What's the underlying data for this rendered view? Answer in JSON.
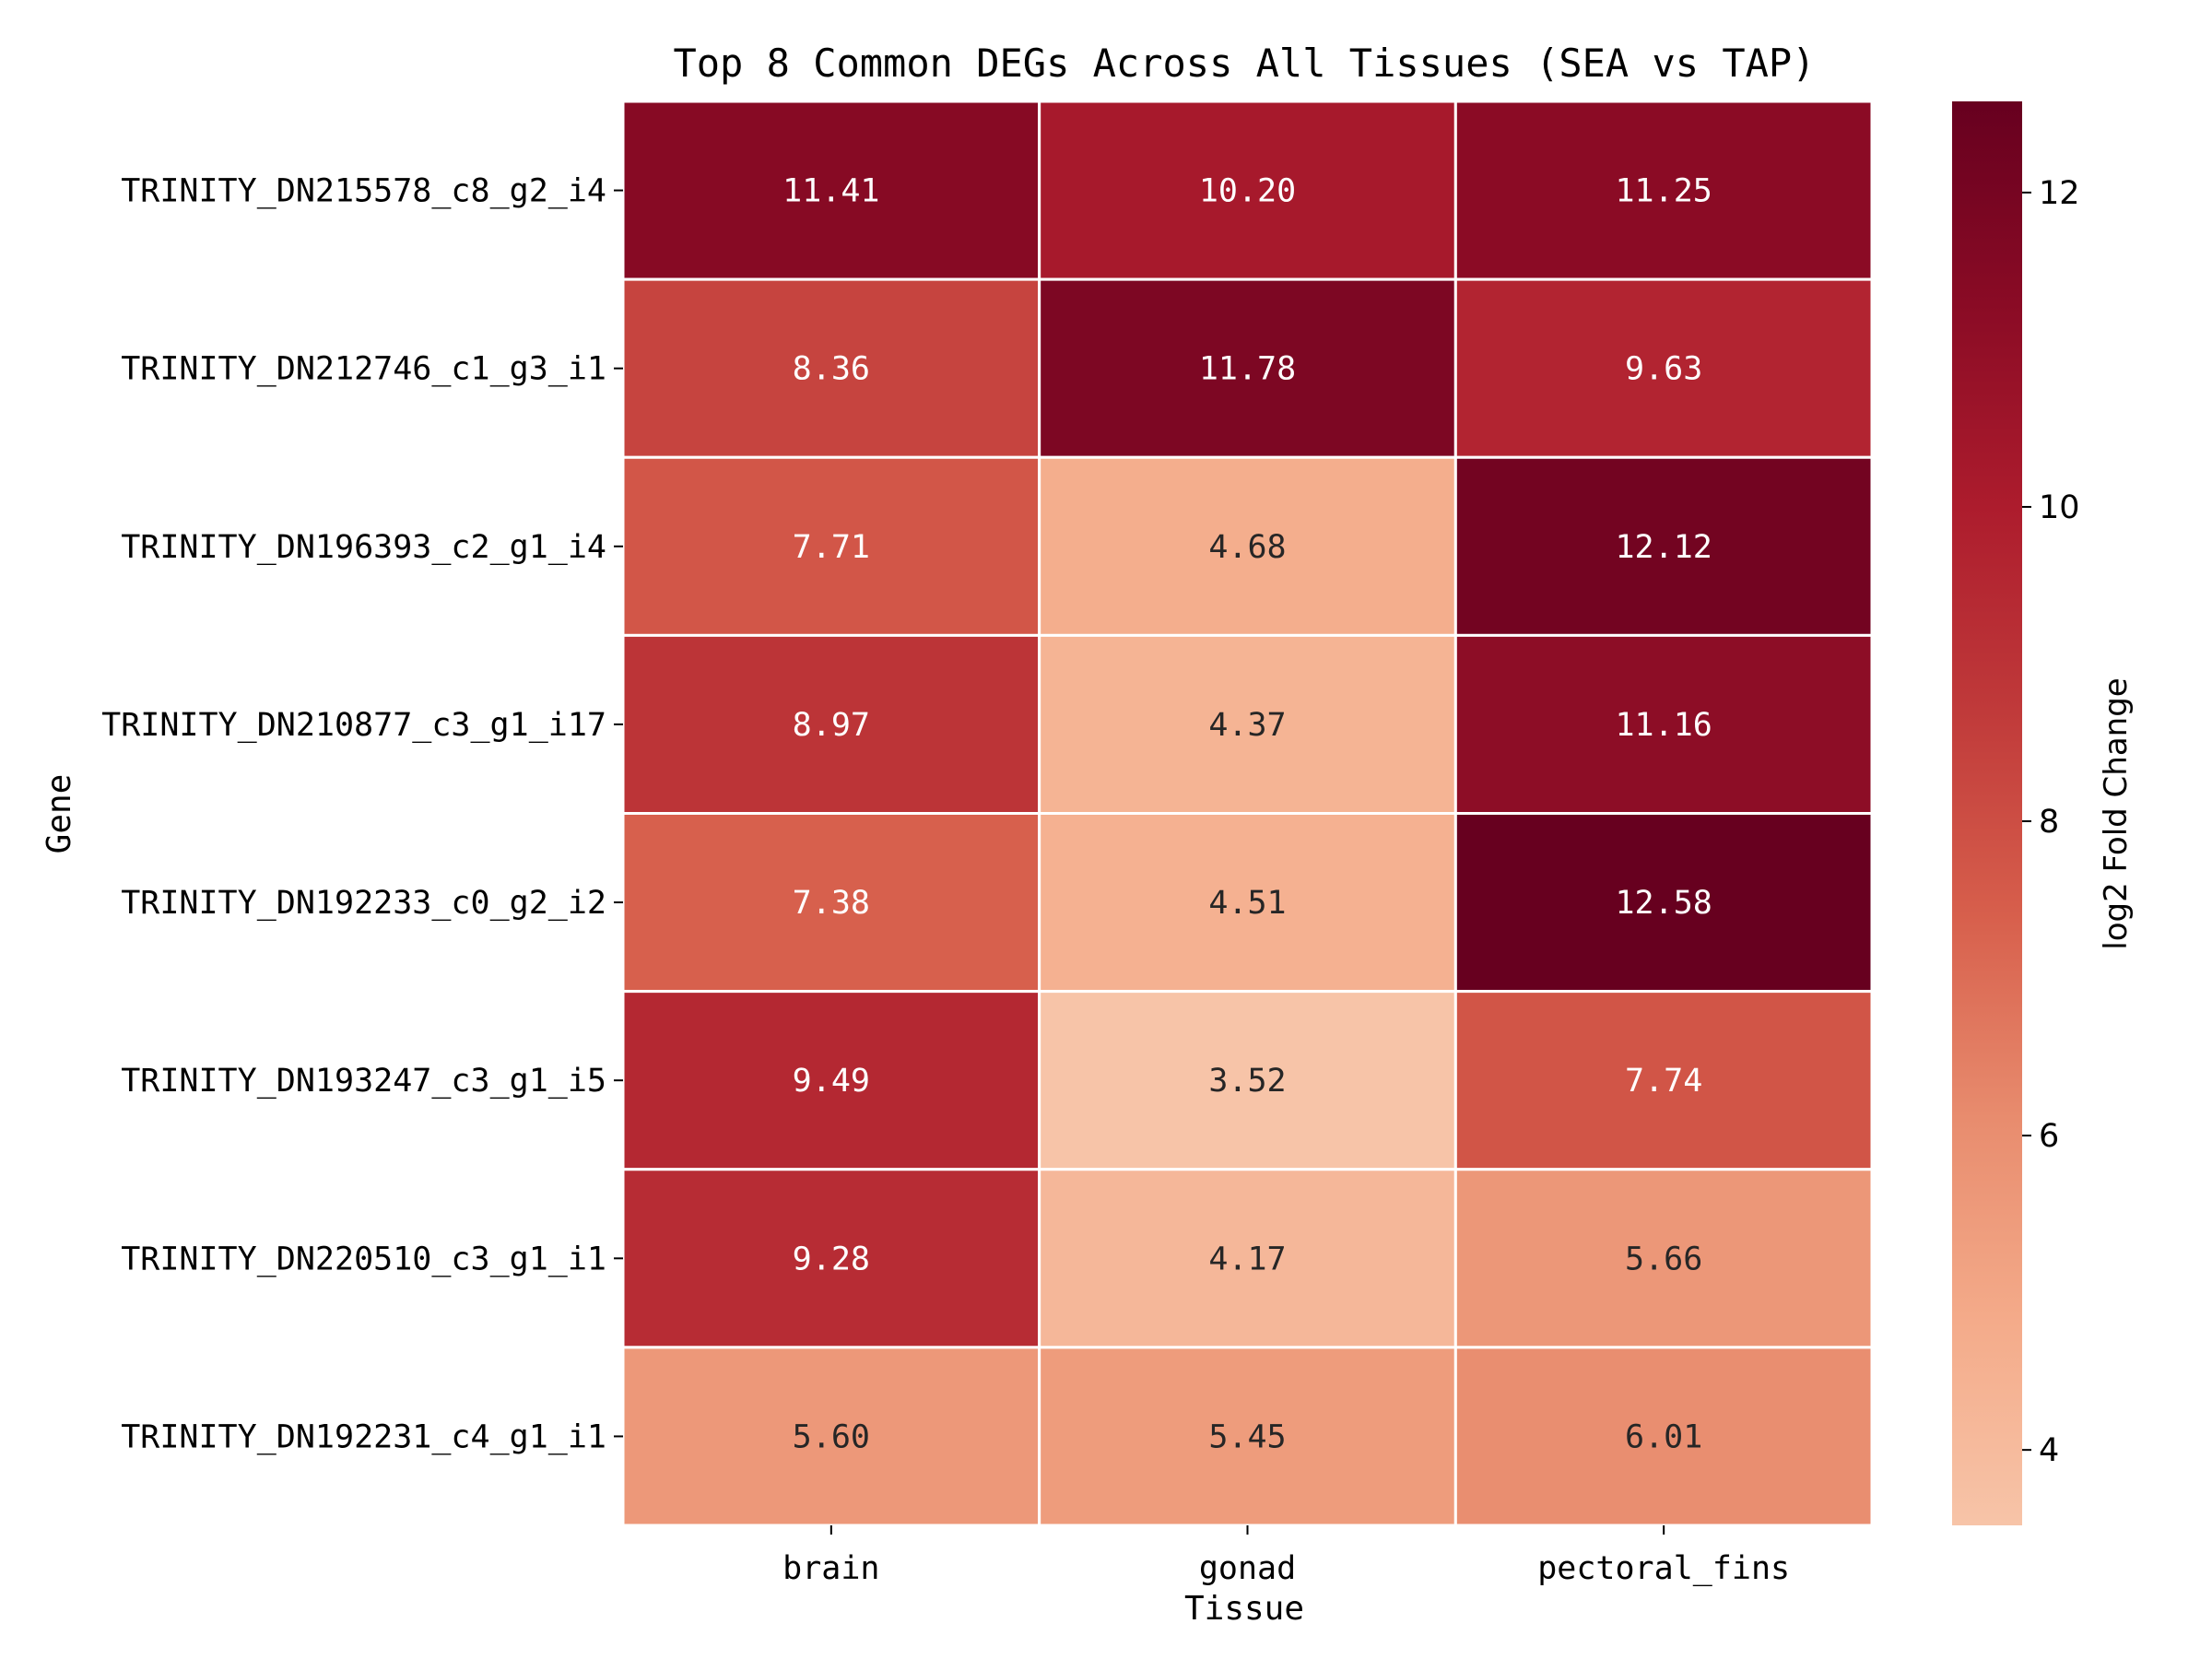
{
  "chart_data": {
    "type": "heatmap",
    "title": "Top 8 Common DEGs Across All Tissues (SEA vs TAP)",
    "xlabel": "Tissue",
    "ylabel": "Gene",
    "x_categories": [
      "brain",
      "gonad",
      "pectoral_fins"
    ],
    "y_categories": [
      "TRINITY_DN215578_c8_g2_i4",
      "TRINITY_DN212746_c1_g3_i1",
      "TRINITY_DN196393_c2_g1_i4",
      "TRINITY_DN210877_c3_g1_i17",
      "TRINITY_DN192233_c0_g2_i2",
      "TRINITY_DN193247_c3_g1_i5",
      "TRINITY_DN220510_c3_g1_i1",
      "TRINITY_DN192231_c4_g1_i1"
    ],
    "values": [
      [
        11.41,
        10.2,
        11.25
      ],
      [
        8.36,
        11.78,
        9.63
      ],
      [
        7.71,
        4.68,
        12.12
      ],
      [
        8.97,
        4.37,
        11.16
      ],
      [
        7.38,
        4.51,
        12.58
      ],
      [
        9.49,
        3.52,
        7.74
      ],
      [
        9.28,
        4.17,
        5.66
      ],
      [
        5.6,
        5.45,
        6.01
      ]
    ],
    "value_labels": [
      [
        "11.41",
        "10.20",
        "11.25"
      ],
      [
        "8.36",
        "11.78",
        "9.63"
      ],
      [
        "7.71",
        "4.68",
        "12.12"
      ],
      [
        "8.97",
        "4.37",
        "11.16"
      ],
      [
        "7.38",
        "4.51",
        "12.58"
      ],
      [
        "9.49",
        "3.52",
        "7.74"
      ],
      [
        "9.28",
        "4.17",
        "5.66"
      ],
      [
        "5.60",
        "5.45",
        "6.01"
      ]
    ],
    "colorbar": {
      "label": "log2 Fold Change",
      "range": [
        3.52,
        12.58
      ],
      "ticks": [
        4,
        6,
        8,
        10,
        12
      ],
      "colormap": "Reds-like (light peach to dark maroon)",
      "color_stops": [
        "#f7c4a8",
        "#f4ab8a",
        "#e88c6e",
        "#d75f4c",
        "#c03a3a",
        "#ad1c2d",
        "#8a0b25",
        "#67001f"
      ]
    },
    "grid": false,
    "cell_border_color": "#ffffff"
  }
}
